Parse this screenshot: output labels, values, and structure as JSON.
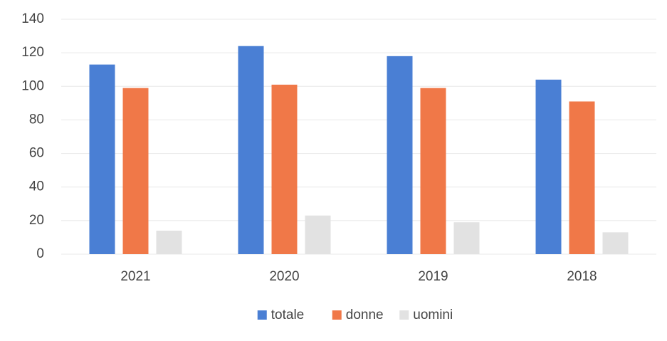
{
  "chart_data": {
    "type": "bar",
    "categories": [
      "2021",
      "2020",
      "2019",
      "2018"
    ],
    "series": [
      {
        "name": "totale",
        "color": "#4a7fd4",
        "values": [
          113,
          124,
          118,
          104
        ]
      },
      {
        "name": "donne",
        "color": "#f07848",
        "values": [
          99,
          101,
          99,
          91
        ]
      },
      {
        "name": "uomini",
        "color": "#e2e2e2",
        "values": [
          14,
          23,
          19,
          13
        ]
      }
    ],
    "ylim": [
      0,
      140
    ],
    "yticks": [
      0,
      20,
      40,
      60,
      80,
      100,
      120,
      140
    ],
    "grid": true,
    "legend": "bottom"
  }
}
